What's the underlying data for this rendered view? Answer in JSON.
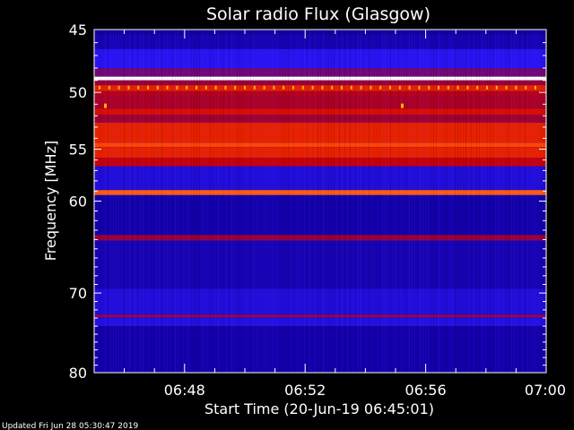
{
  "chart_data": {
    "type": "heatmap",
    "title": "Solar radio Flux (Glasgow)",
    "xlabel": "Start Time (20-Jun-19 06:45:01)",
    "ylabel": "Frequency [MHz]",
    "x_ticks": [
      "06:48",
      "06:52",
      "06:56",
      "07:00"
    ],
    "x_tick_minutes": [
      3,
      7,
      11,
      15
    ],
    "x_range_minutes": [
      0,
      15
    ],
    "y_ticks": [
      45,
      50,
      55,
      60,
      70,
      80
    ],
    "y_range": [
      45,
      80
    ],
    "y_scale": "log",
    "colormap": "blue-red-white",
    "bands": [
      {
        "f0": 45.0,
        "f1": 45.4,
        "level": 0.18
      },
      {
        "f0": 45.4,
        "f1": 46.5,
        "level": 0.22
      },
      {
        "f0": 46.5,
        "f1": 48.0,
        "level": 0.35
      },
      {
        "f0": 48.0,
        "f1": 48.7,
        "level": 0.45
      },
      {
        "f0": 48.7,
        "f1": 49.0,
        "level": 1.0
      },
      {
        "f0": 49.0,
        "f1": 49.4,
        "level": 0.5
      },
      {
        "f0": 49.4,
        "f1": 49.9,
        "level": 0.72
      },
      {
        "f0": 49.9,
        "f1": 50.4,
        "level": 0.58
      },
      {
        "f0": 50.4,
        "f1": 51.4,
        "level": 0.55
      },
      {
        "f0": 51.4,
        "f1": 51.9,
        "level": 0.68
      },
      {
        "f0": 51.9,
        "f1": 52.6,
        "level": 0.52
      },
      {
        "f0": 52.6,
        "f1": 54.4,
        "level": 0.72
      },
      {
        "f0": 54.4,
        "f1": 54.8,
        "level": 0.8
      },
      {
        "f0": 54.8,
        "f1": 55.8,
        "level": 0.72
      },
      {
        "f0": 55.8,
        "f1": 56.6,
        "level": 0.62
      },
      {
        "f0": 56.6,
        "f1": 58.9,
        "level": 0.3
      },
      {
        "f0": 58.9,
        "f1": 59.4,
        "level": 0.82
      },
      {
        "f0": 59.4,
        "f1": 63.5,
        "level": 0.2
      },
      {
        "f0": 63.5,
        "f1": 64.1,
        "level": 0.5
      },
      {
        "f0": 64.1,
        "f1": 69.5,
        "level": 0.22
      },
      {
        "f0": 69.5,
        "f1": 72.6,
        "level": 0.3
      },
      {
        "f0": 72.6,
        "f1": 72.9,
        "level": 0.55
      },
      {
        "f0": 72.9,
        "f1": 74.0,
        "level": 0.32
      },
      {
        "f0": 74.0,
        "f1": 80.0,
        "level": 0.2
      }
    ]
  },
  "footer": {
    "updated": "Updated Fri Jun 28 05:30:47 2019"
  }
}
